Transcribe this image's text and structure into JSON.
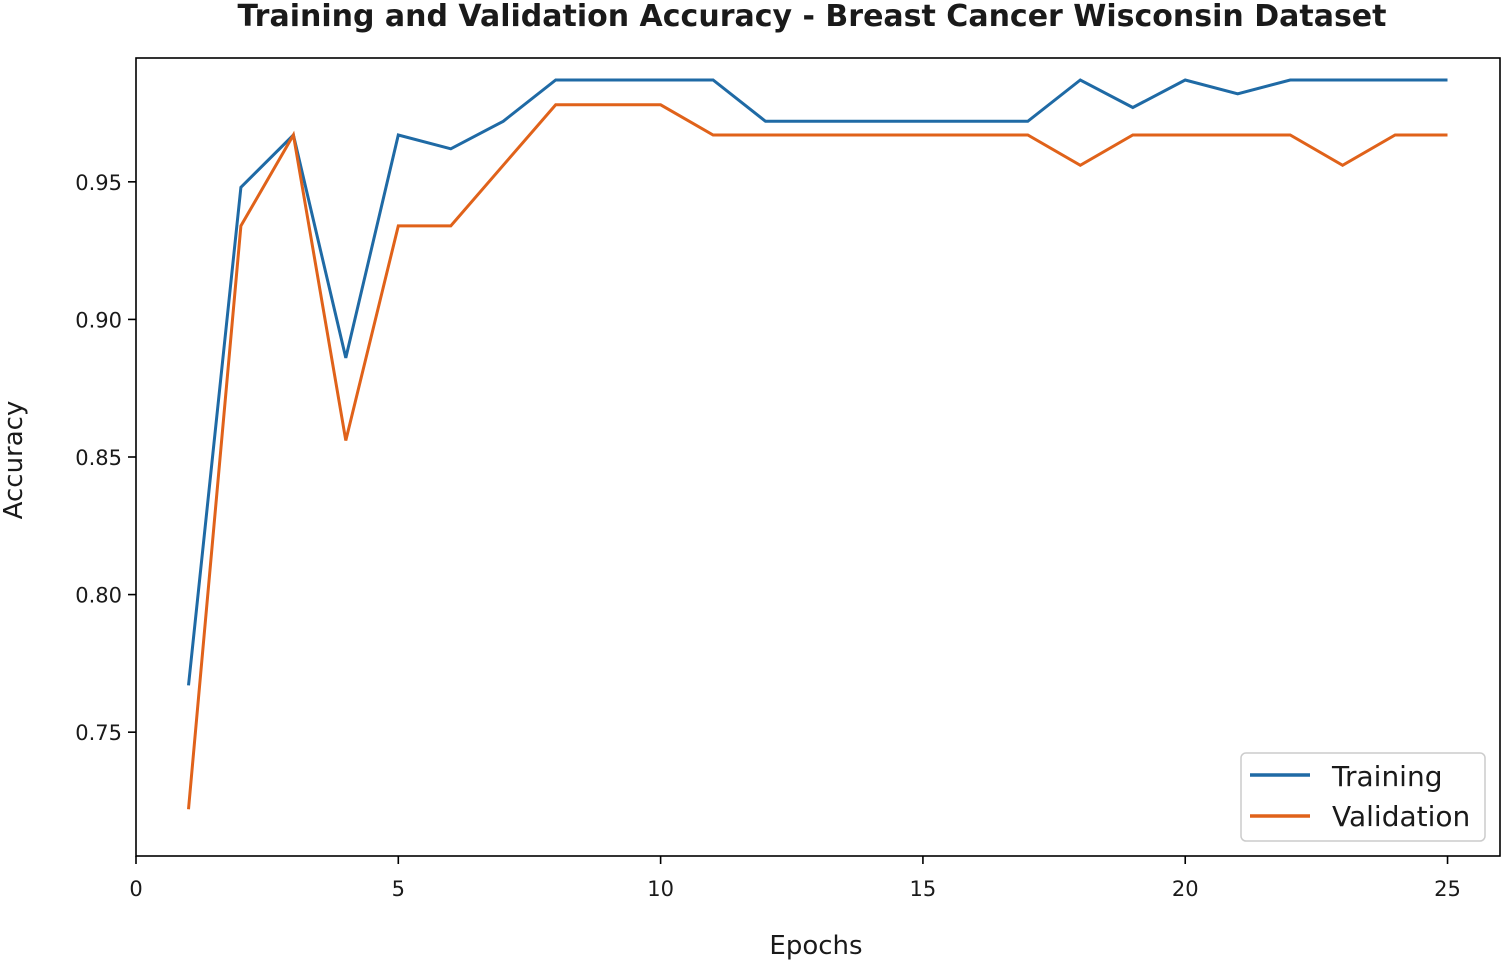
{
  "chart_data": {
    "type": "line",
    "title": "Training and Validation Accuracy - Breast Cancer Wisconsin Dataset",
    "xlabel": "Epochs",
    "ylabel": "Accuracy",
    "xlim": [
      0,
      26
    ],
    "ylim": [
      0.705,
      0.995
    ],
    "xticks": [
      0,
      5,
      10,
      15,
      20,
      25
    ],
    "xtick_labels": [
      "0",
      "5",
      "10",
      "15",
      "20",
      "25"
    ],
    "yticks": [
      0.75,
      0.8,
      0.85,
      0.9,
      0.95
    ],
    "ytick_labels": [
      "0.75",
      "0.80",
      "0.85",
      "0.90",
      "0.95"
    ],
    "grid": false,
    "legend_position": "lower-right",
    "x": [
      1,
      2,
      3,
      4,
      5,
      6,
      7,
      8,
      9,
      10,
      11,
      12,
      13,
      14,
      15,
      16,
      17,
      18,
      19,
      20,
      21,
      22,
      23,
      24,
      25
    ],
    "series": [
      {
        "name": "Training",
        "color": "#1f6aa5",
        "values": [
          0.767,
          0.948,
          0.967,
          0.886,
          0.967,
          0.962,
          0.972,
          0.987,
          0.987,
          0.987,
          0.987,
          0.972,
          0.972,
          0.972,
          0.972,
          0.972,
          0.972,
          0.987,
          0.977,
          0.987,
          0.982,
          0.987,
          0.987,
          0.987,
          0.987
        ]
      },
      {
        "name": "Validation",
        "color": "#e0621a",
        "values": [
          0.722,
          0.934,
          0.967,
          0.856,
          0.934,
          0.934,
          0.956,
          0.978,
          0.978,
          0.978,
          0.967,
          0.967,
          0.967,
          0.967,
          0.967,
          0.967,
          0.967,
          0.956,
          0.967,
          0.967,
          0.967,
          0.967,
          0.956,
          0.967,
          0.967
        ]
      }
    ]
  }
}
